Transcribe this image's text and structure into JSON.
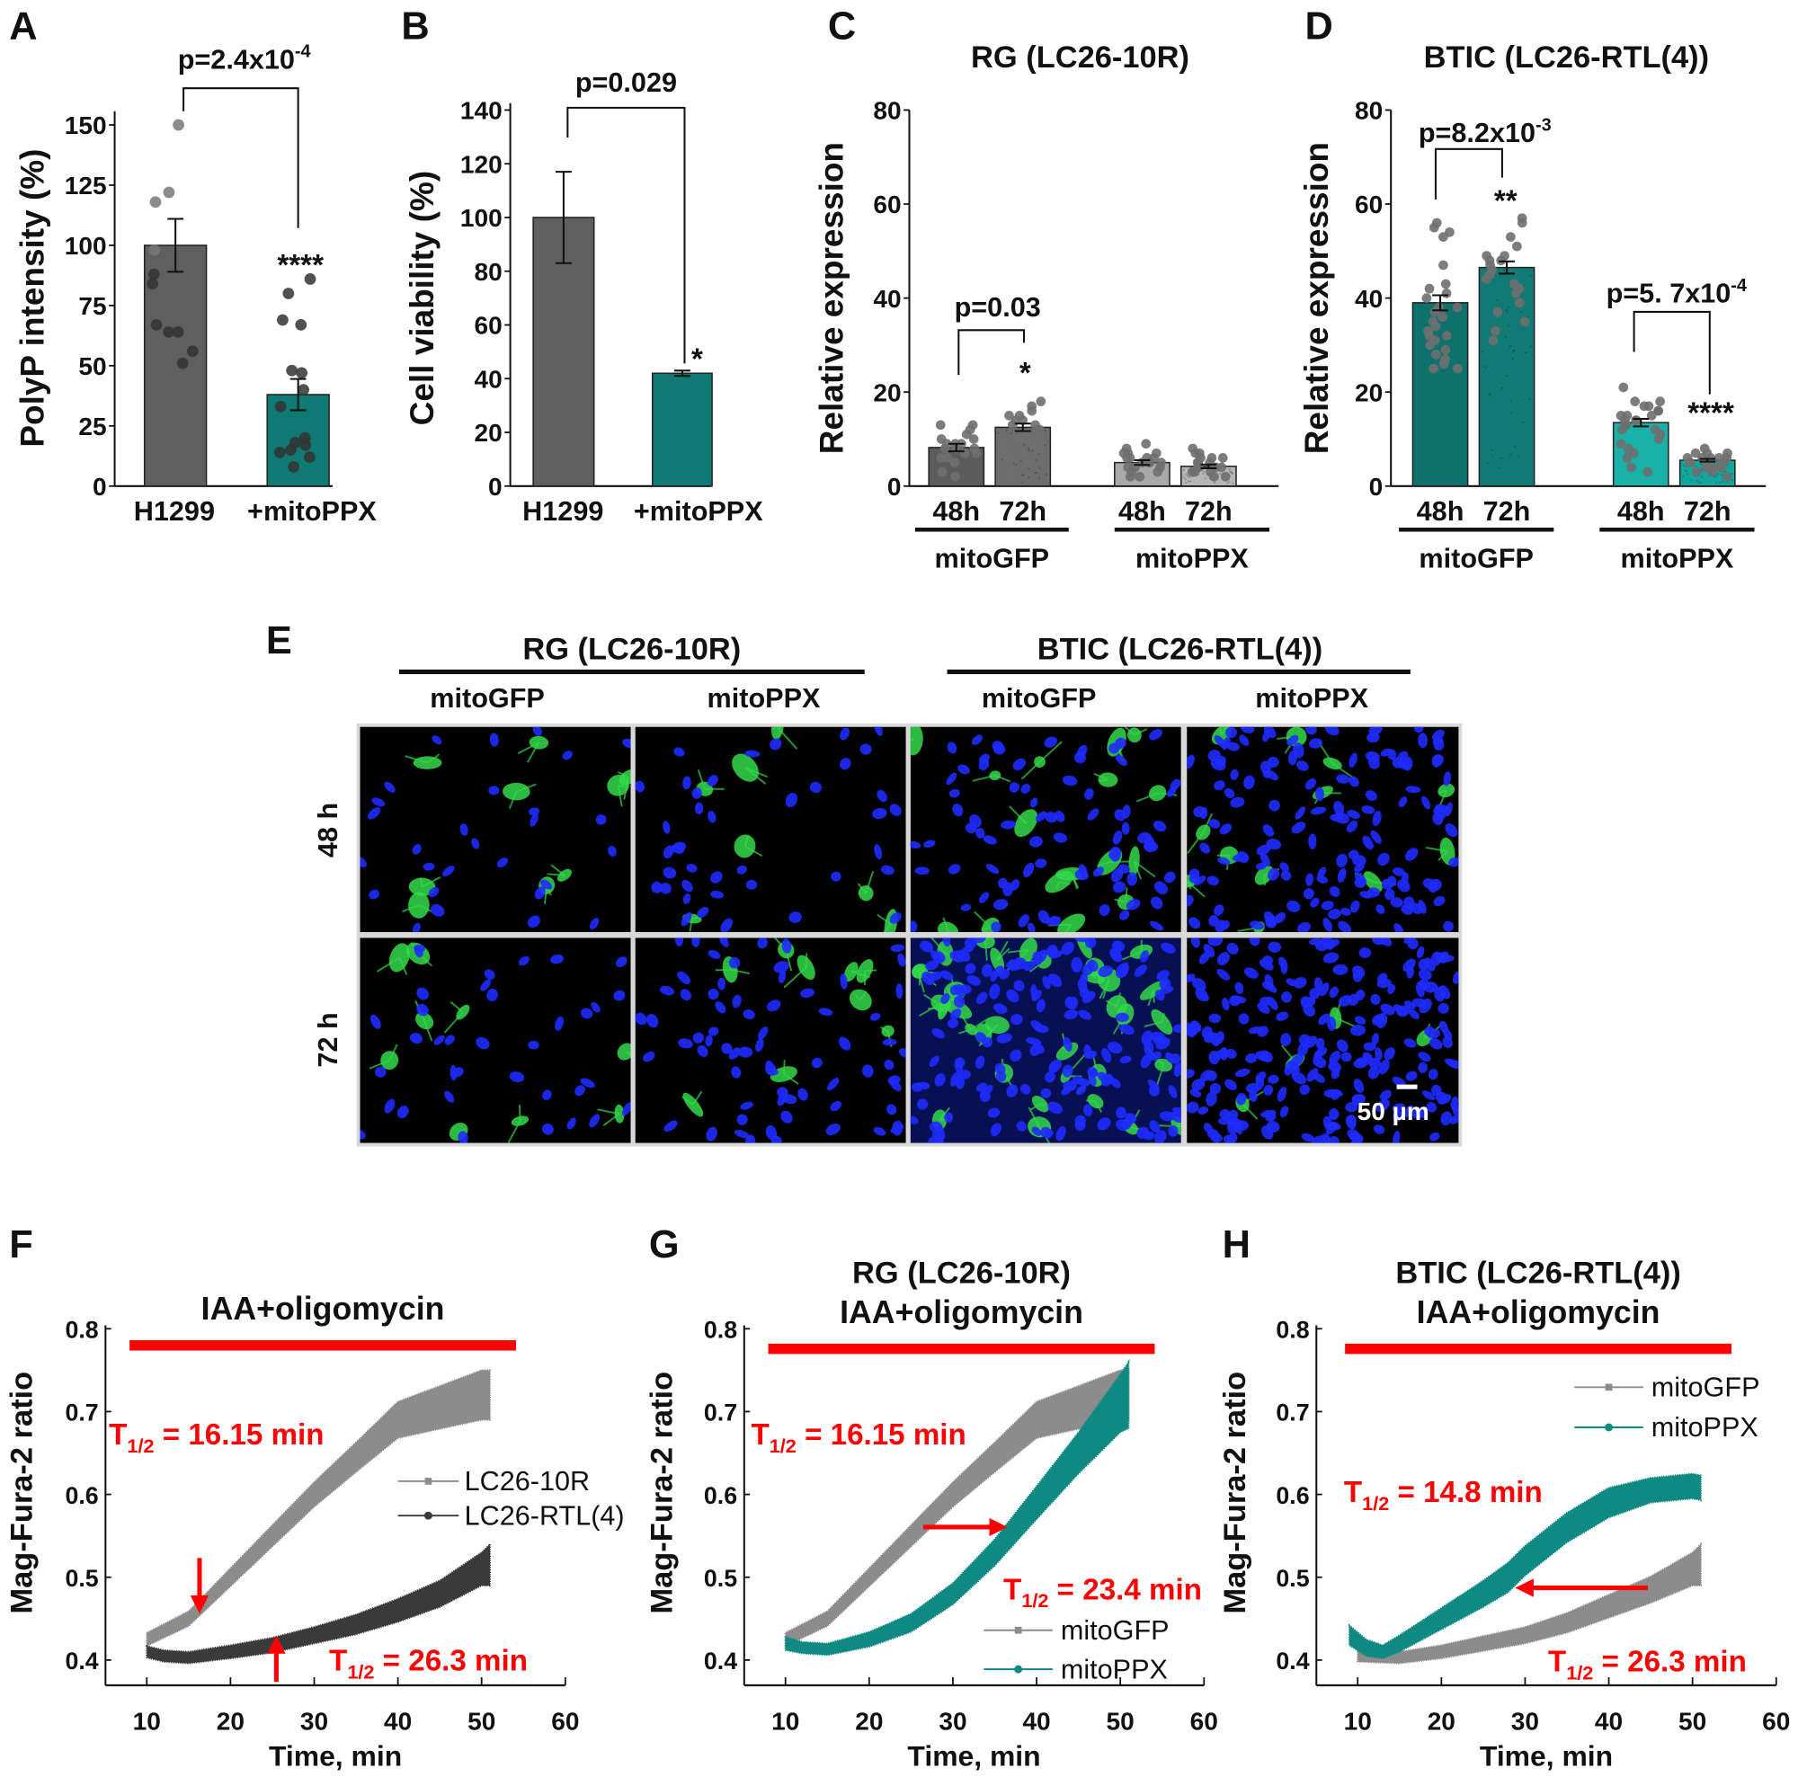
{
  "panel_labels": [
    "A",
    "B",
    "C",
    "D",
    "E",
    "F",
    "G",
    "H"
  ],
  "chart_data": [
    {
      "panel": "A",
      "type": "bar",
      "ylabel": "PolyP intensity (%)",
      "ylim": [
        0,
        160
      ],
      "yticks": [
        "0",
        "25",
        "50",
        "75",
        "100",
        "125",
        "150"
      ],
      "categories": [
        "H1299",
        "+mitoPPX"
      ],
      "values": [
        100,
        38
      ],
      "errors": [
        11,
        6.5
      ],
      "colors": [
        "#5f5f5f",
        "#0f7a73"
      ],
      "points": [
        [
          150,
          122,
          118,
          98,
          88,
          84,
          67,
          64,
          64,
          56,
          51
        ],
        [
          86,
          80,
          69,
          67,
          48,
          47,
          40,
          33,
          20,
          18,
          17,
          15,
          14,
          12,
          8
        ]
      ],
      "comparisons": [
        {
          "p_base": "p=2.4x10",
          "p_exp": "-4",
          "stars": "****"
        }
      ]
    },
    {
      "panel": "B",
      "type": "bar",
      "ylabel": "Cell viability (%)",
      "ylim": [
        0,
        140
      ],
      "yticks": [
        "0",
        "20",
        "40",
        "60",
        "80",
        "100",
        "120",
        "140"
      ],
      "categories": [
        "H1299",
        "+mitoPPX"
      ],
      "values": [
        100,
        42
      ],
      "errors": [
        17,
        1
      ],
      "colors": [
        "#5f5f5f",
        "#0f7a73"
      ],
      "points": [
        [],
        []
      ],
      "comparisons": [
        {
          "p_base": "p=0.029",
          "p_exp": "",
          "stars": "*"
        }
      ]
    },
    {
      "panel": "C",
      "type": "bar",
      "title": "RG (LC26-10R)",
      "ylabel": "Relative expression",
      "ylim": [
        0,
        80
      ],
      "yticks": [
        "0",
        "20",
        "40",
        "60",
        "80"
      ],
      "categories": [
        "48h",
        "72h",
        "48h",
        "72h"
      ],
      "groups": [
        "mitoGFP",
        "mitoPPX"
      ],
      "values": [
        8.2,
        12.5,
        5.0,
        4.2
      ],
      "errors": [
        0.8,
        0.8,
        0.5,
        0.4
      ],
      "colors": [
        "#5c5c5c",
        "#6d6d6d",
        "#a9a9a9",
        "#b6b6b6"
      ],
      "points": [
        [
          13,
          13,
          12,
          11,
          10,
          10,
          9,
          9,
          8,
          8,
          8,
          7,
          7,
          6,
          6,
          5,
          3,
          2,
          9
        ],
        [
          18,
          17,
          16,
          15,
          15,
          14,
          14,
          13,
          13,
          12,
          12,
          11,
          11,
          10,
          10,
          9,
          8,
          8,
          7,
          6,
          5,
          2
        ],
        [
          9,
          8,
          7,
          7,
          7,
          6,
          6,
          6,
          5,
          5,
          5,
          4,
          4,
          4,
          3,
          3,
          2,
          2,
          6,
          5
        ],
        [
          8,
          7,
          7,
          6,
          6,
          5,
          5,
          5,
          4,
          4,
          4,
          4,
          3,
          3,
          3,
          2,
          2,
          6
        ]
      ],
      "comparisons": [
        {
          "p_base": "p=0.03",
          "p_exp": "",
          "stars": "*"
        }
      ]
    },
    {
      "panel": "D",
      "type": "bar",
      "title": "BTIC (LC26-RTL(4))",
      "ylabel": "Relative expression",
      "ylim": [
        0,
        80
      ],
      "yticks": [
        "0",
        "20",
        "40",
        "60",
        "80"
      ],
      "categories": [
        "48h",
        "72h",
        "48h",
        "72h"
      ],
      "groups": [
        "mitoGFP",
        "mitoPPX"
      ],
      "values": [
        39,
        46.5,
        13.5,
        5.5
      ],
      "errors": [
        1.6,
        1.3,
        0.8,
        0.3
      ],
      "colors": [
        "#0e716b",
        "#127a74",
        "#19b1a8",
        "#14a59c"
      ],
      "points": [
        [
          56,
          55,
          54,
          53,
          47,
          43,
          42,
          41,
          40,
          38,
          37,
          36,
          35,
          34,
          33,
          32,
          31,
          30,
          29,
          28,
          27,
          26,
          25,
          25,
          32,
          38
        ],
        [
          57,
          56,
          53,
          51,
          49,
          49,
          48,
          48,
          47,
          46,
          45,
          44,
          43,
          42,
          41,
          39,
          37,
          35,
          33,
          31
        ],
        [
          21,
          18,
          18,
          17,
          17,
          16,
          16,
          15,
          15,
          14,
          14,
          13,
          13,
          12,
          12,
          11,
          10,
          9,
          8,
          7,
          6,
          4,
          3,
          14,
          15
        ],
        [
          8,
          7,
          7,
          7,
          6,
          6,
          6,
          6,
          5,
          5,
          5,
          5,
          4,
          4,
          4,
          4,
          3,
          3,
          2,
          6
        ]
      ],
      "comparisons": [
        {
          "p_base": "p=8.2x10",
          "p_exp": "-3",
          "stars": "**"
        },
        {
          "p_base": "p=5. 7x10",
          "p_exp": "-4",
          "stars": "****"
        }
      ]
    },
    {
      "panel": "F",
      "type": "line",
      "treatment": "IAA+oligomycin",
      "xlabel": "Time, min",
      "ylabel": "Mag-Fura-2 ratio",
      "xlim": [
        5,
        60
      ],
      "ylim": [
        0.37,
        0.8
      ],
      "xticks": [
        "10",
        "20",
        "30",
        "40",
        "50",
        "60"
      ],
      "yticks": [
        "0.4",
        "0.5",
        "0.6",
        "0.7",
        "0.8"
      ],
      "series": [
        {
          "name": "LC26-10R",
          "color": "#8c8c8c",
          "x": [
            10,
            15,
            20,
            25,
            30,
            35,
            40,
            45,
            50,
            51
          ],
          "y": [
            0.425,
            0.45,
            0.5,
            0.55,
            0.6,
            0.645,
            0.69,
            0.705,
            0.72,
            0.72
          ],
          "spread": [
            0.008,
            0.009,
            0.011,
            0.013,
            0.015,
            0.018,
            0.022,
            0.026,
            0.03,
            0.03
          ]
        },
        {
          "name": "LC26-RTL(4)",
          "color": "#3a3a3a",
          "x": [
            10,
            12,
            15,
            20,
            25,
            30,
            35,
            40,
            45,
            50,
            51
          ],
          "y": [
            0.41,
            0.405,
            0.403,
            0.41,
            0.418,
            0.43,
            0.443,
            0.46,
            0.48,
            0.51,
            0.515
          ],
          "spread": [
            0.007,
            0.007,
            0.007,
            0.008,
            0.009,
            0.01,
            0.012,
            0.014,
            0.016,
            0.02,
            0.025
          ]
        }
      ],
      "annotations": [
        {
          "sym": "T",
          "sub": "1/2",
          "text": " = 16.15 min"
        },
        {
          "sym": "T",
          "sub": "1/2",
          "text": " = 26.3 min"
        }
      ]
    },
    {
      "panel": "G",
      "type": "line",
      "title": "RG (LC26-10R)",
      "treatment": "IAA+oligomycin",
      "xlabel": "Time, min",
      "ylabel": "Mag-Fura-2 ratio",
      "xlim": [
        5,
        60
      ],
      "ylim": [
        0.37,
        0.8
      ],
      "xticks": [
        "10",
        "20",
        "30",
        "40",
        "50",
        "60"
      ],
      "yticks": [
        "0.4",
        "0.5",
        "0.6",
        "0.7",
        "0.8"
      ],
      "series": [
        {
          "name": "mitoGFP",
          "color": "#8c8c8c",
          "x": [
            10,
            15,
            20,
            25,
            30,
            35,
            40,
            45,
            50,
            51
          ],
          "y": [
            0.425,
            0.45,
            0.5,
            0.55,
            0.6,
            0.645,
            0.69,
            0.705,
            0.72,
            0.72
          ],
          "spread": [
            0.008,
            0.009,
            0.011,
            0.013,
            0.015,
            0.018,
            0.022,
            0.026,
            0.03,
            0.03
          ]
        },
        {
          "name": "mitoPPX",
          "color": "#0e8a82",
          "x": [
            10,
            12,
            15,
            20,
            25,
            30,
            35,
            40,
            45,
            50,
            51
          ],
          "y": [
            0.42,
            0.415,
            0.413,
            0.425,
            0.445,
            0.48,
            0.53,
            0.59,
            0.65,
            0.71,
            0.72
          ],
          "spread": [
            0.008,
            0.007,
            0.007,
            0.009,
            0.011,
            0.013,
            0.016,
            0.02,
            0.025,
            0.035,
            0.04
          ]
        }
      ],
      "annotations": [
        {
          "sym": "T",
          "sub": "1/2",
          "text": " = 16.15 min"
        },
        {
          "sym": "T",
          "sub": "1/2",
          "text": " = 23.4 min"
        }
      ]
    },
    {
      "panel": "H",
      "type": "line",
      "title": "BTIC (LC26-RTL(4))",
      "treatment": "IAA+oligomycin",
      "xlabel": "Time, min",
      "ylabel": "Mag-Fura-2 ratio",
      "xlim": [
        5,
        60
      ],
      "ylim": [
        0.37,
        0.8
      ],
      "xticks": [
        "10",
        "20",
        "30",
        "40",
        "50",
        "60"
      ],
      "yticks": [
        "0.4",
        "0.5",
        "0.6",
        "0.7",
        "0.8"
      ],
      "series": [
        {
          "name": "mitoGFP",
          "color": "#8c8c8c",
          "x": [
            10,
            15,
            20,
            25,
            30,
            35,
            40,
            45,
            50,
            51
          ],
          "y": [
            0.405,
            0.403,
            0.41,
            0.42,
            0.43,
            0.445,
            0.465,
            0.485,
            0.51,
            0.515
          ],
          "spread": [
            0.007,
            0.007,
            0.008,
            0.009,
            0.01,
            0.012,
            0.014,
            0.016,
            0.02,
            0.025
          ]
        },
        {
          "name": "mitoPPX",
          "color": "#0e8a82",
          "x": [
            9,
            11,
            13,
            15,
            20,
            25,
            28,
            30,
            35,
            40,
            45,
            50,
            51
          ],
          "y": [
            0.43,
            0.415,
            0.41,
            0.42,
            0.45,
            0.48,
            0.5,
            0.52,
            0.56,
            0.59,
            0.605,
            0.61,
            0.608
          ],
          "spread": [
            0.012,
            0.01,
            0.008,
            0.01,
            0.013,
            0.016,
            0.018,
            0.018,
            0.018,
            0.018,
            0.015,
            0.015,
            0.015
          ]
        }
      ],
      "annotations": [
        {
          "sym": "T",
          "sub": "1/2",
          "text": " = 14.8 min"
        },
        {
          "sym": "T",
          "sub": "1/2",
          "text": " = 26.3 min"
        }
      ]
    }
  ],
  "panel_e": {
    "groups": [
      "RG (LC26-10R)",
      "BTIC (LC26-RTL(4))"
    ],
    "columns": [
      "mitoGFP",
      "mitoPPX",
      "mitoGFP",
      "mitoPPX"
    ],
    "rows": [
      "48 h",
      "72 h"
    ],
    "scale_bar": "50 µm",
    "colors": {
      "nuclei": "#1f2bff",
      "mito": "#33d94a",
      "background": "#000000"
    }
  },
  "colors": {
    "annotation": "#ff0000",
    "gray": "#5f5f5f",
    "teal": "#0f7a73"
  }
}
